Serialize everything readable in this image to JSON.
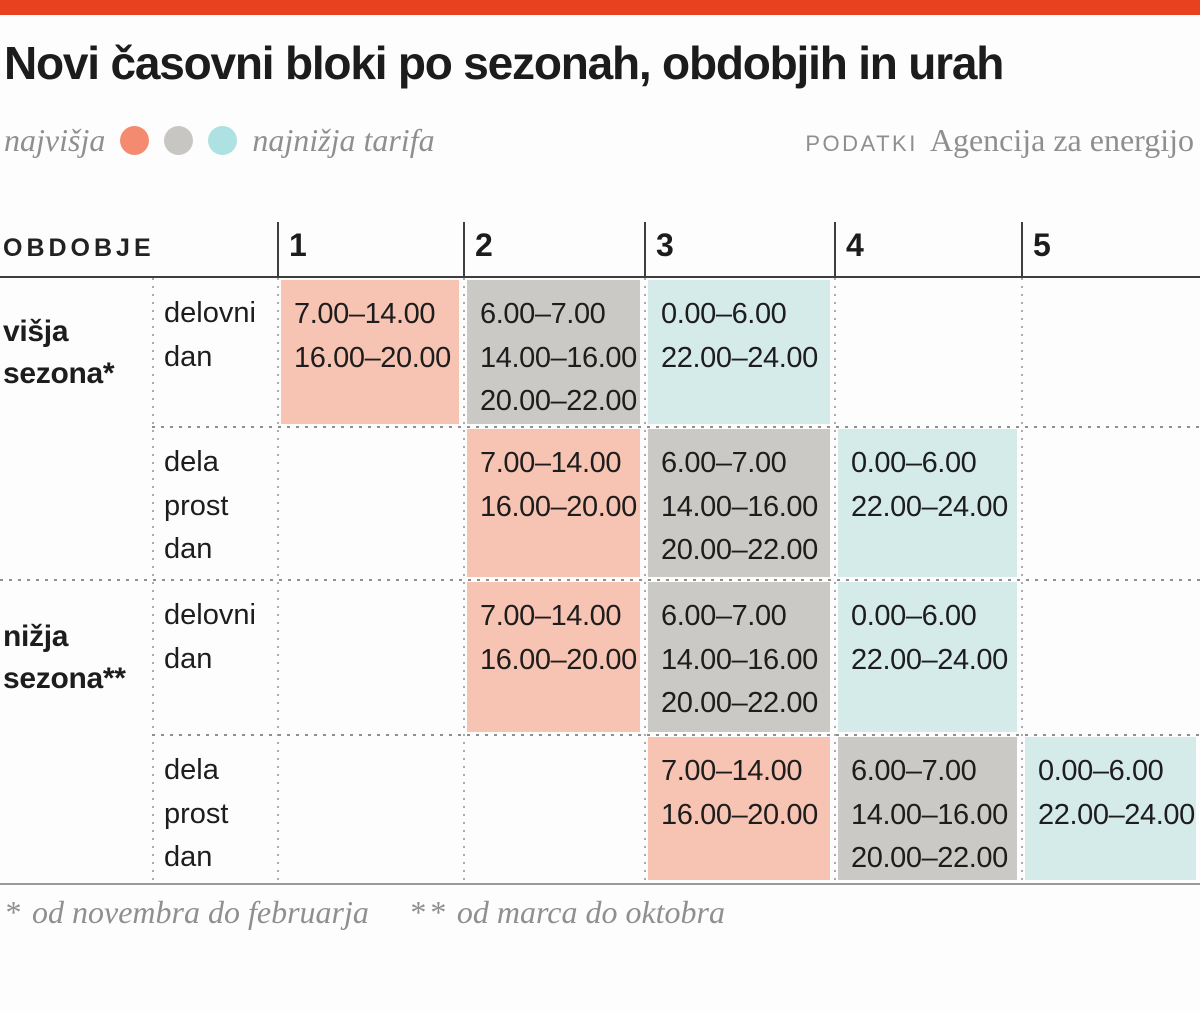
{
  "chart_data": {
    "type": "table",
    "title": "Novi časovni bloki po sezonah, obdobjih in urah",
    "source_label": "PODATKI",
    "source_value": "Agencija za energijo",
    "accent_bar_color": "#e8411f",
    "legend": {
      "left_label": "najvišja",
      "right_label": "najnižja tarifa",
      "dot_order": [
        "high",
        "mid",
        "low"
      ]
    },
    "tariff_dot_colors": {
      "high": "#f48b70",
      "mid": "#c8c6c2",
      "low": "#aee1e1"
    },
    "tariff_colors": {
      "high": "#f7c3b2",
      "mid": "#cac9c5",
      "low": "#d4ebea"
    },
    "corner_label": "OBDOBJE",
    "columns": [
      "1",
      "2",
      "3",
      "4",
      "5"
    ],
    "rows": [
      {
        "season_lines": [
          "višja",
          "sezona*"
        ],
        "day_lines": [
          "delovni",
          "dan"
        ],
        "cells": [
          {
            "tariff": "high",
            "times": [
              "7.00–14.00",
              "16.00–20.00"
            ]
          },
          {
            "tariff": "mid",
            "times": [
              "6.00–7.00",
              "14.00–16.00",
              "20.00–22.00"
            ]
          },
          {
            "tariff": "low",
            "times": [
              "0.00–6.00",
              "22.00–24.00"
            ]
          },
          null,
          null
        ]
      },
      {
        "season_lines": [],
        "day_lines": [
          "dela",
          "prost",
          "dan"
        ],
        "cells": [
          null,
          {
            "tariff": "high",
            "times": [
              "7.00–14.00",
              "16.00–20.00"
            ]
          },
          {
            "tariff": "mid",
            "times": [
              "6.00–7.00",
              "14.00–16.00",
              "20.00–22.00"
            ]
          },
          {
            "tariff": "low",
            "times": [
              "0.00–6.00",
              "22.00–24.00"
            ]
          },
          null
        ]
      },
      {
        "season_lines": [
          "nižja",
          "sezona**"
        ],
        "day_lines": [
          "delovni",
          "dan"
        ],
        "cells": [
          null,
          {
            "tariff": "high",
            "times": [
              "7.00–14.00",
              "16.00–20.00"
            ]
          },
          {
            "tariff": "mid",
            "times": [
              "6.00–7.00",
              "14.00–16.00",
              "20.00–22.00"
            ]
          },
          {
            "tariff": "low",
            "times": [
              "0.00–6.00",
              "22.00–24.00"
            ]
          },
          null
        ]
      },
      {
        "season_lines": [],
        "day_lines": [
          "dela",
          "prost",
          "dan"
        ],
        "cells": [
          null,
          null,
          {
            "tariff": "high",
            "times": [
              "7.00–14.00",
              "16.00–20.00"
            ]
          },
          {
            "tariff": "mid",
            "times": [
              "6.00–7.00",
              "14.00–16.00",
              "20.00–22.00"
            ]
          },
          {
            "tariff": "low",
            "times": [
              "0.00–6.00",
              "22.00–24.00"
            ]
          }
        ]
      }
    ],
    "footnotes": [
      {
        "marker": "*",
        "text": "od novembra do februarja"
      },
      {
        "marker": "**",
        "text": "od marca do oktobra"
      }
    ]
  }
}
